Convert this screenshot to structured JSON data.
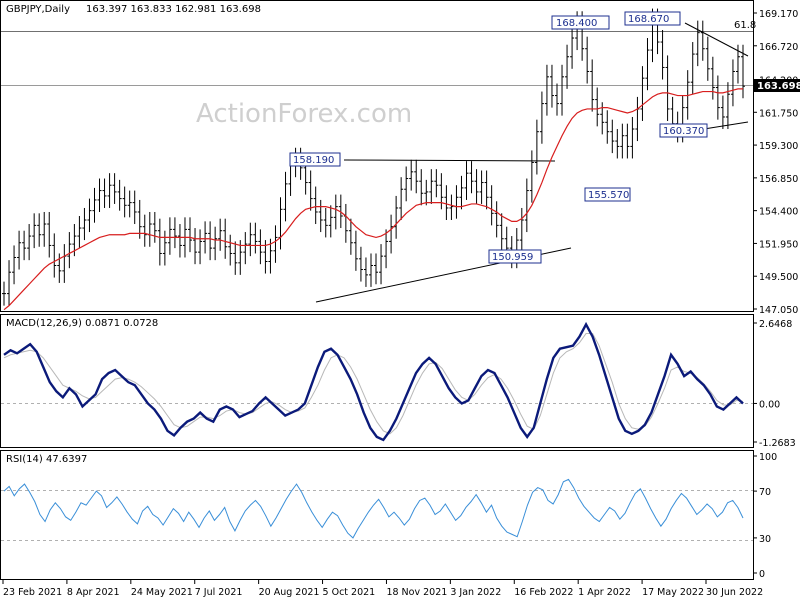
{
  "header": {
    "symbol": "GBPJPY,Daily",
    "ohlc": "163.397 163.833 162.981 163.698"
  },
  "watermark": "ActionForex.com",
  "fib_label": "61.8",
  "current_price_label": "163.698",
  "macd_header": "MACD(12,26,9) 0.0871 0.0728",
  "rsi_header": "RSI(14) 47.6397",
  "colors": {
    "price": "#000000",
    "moving_average": "#d81e1e",
    "macd_line": "#0b1a7a",
    "signal_line": "#b8b8b8",
    "rsi_line": "#3a8fd8",
    "annotation_box_border": "#1c2f8f",
    "price_tag_bg": "#000000"
  },
  "chart_data": [
    {
      "type": "line",
      "panel": "price",
      "x_tick_labels": [
        "23 Feb 2021",
        "8 Apr 2021",
        "24 May 2021",
        "7 Jul 2021",
        "20 Aug 2021",
        "5 Oct 2021",
        "18 Nov 2021",
        "3 Jan 2022",
        "16 Feb 2022",
        "1 Apr 2022",
        "17 May 2022",
        "30 Jun 2022"
      ],
      "y_tick_labels": [
        "169.170",
        "166.720",
        "164.200",
        "161.750",
        "159.300",
        "156.850",
        "154.400",
        "151.950",
        "149.500",
        "147.050"
      ],
      "ylim": [
        147.05,
        169.17
      ],
      "grid": false,
      "series": [
        {
          "values": [
            148.2,
            149.8,
            150.9,
            152.0,
            151.6,
            152.5,
            153.3,
            152.6,
            153.4,
            151.8,
            150.3,
            149.9,
            151.0,
            151.9,
            152.5,
            153.1,
            153.7,
            154.4,
            155.2,
            155.9,
            155.5,
            156.3,
            155.8,
            155.3,
            154.8,
            155.0,
            154.3,
            153.2,
            152.6,
            153.4,
            152.9,
            151.2,
            152.0,
            153.0,
            152.5,
            151.8,
            153.0,
            152.2,
            151.3,
            152.1,
            152.7,
            151.6,
            152.3,
            152.9,
            151.7,
            151.2,
            150.5,
            151.3,
            151.9,
            152.6,
            152.1,
            151.3,
            150.6,
            151.4,
            152.4,
            154.5,
            156.4,
            157.8,
            158.2,
            157.6,
            156.5,
            155.3,
            154.3,
            153.7,
            153.3,
            153.9,
            154.7,
            154.0,
            152.9,
            152.0,
            150.8,
            150.0,
            149.6,
            150.3,
            149.8,
            151.0,
            152.1,
            153.2,
            154.6,
            156.0,
            156.8,
            157.3,
            156.6,
            155.7,
            155.8,
            156.6,
            156.3,
            155.4,
            154.6,
            154.7,
            155.4,
            156.1,
            157.2,
            156.6,
            155.8,
            156.5,
            155.4,
            154.2,
            153.3,
            152.3,
            151.6,
            151.0,
            152.2,
            153.7,
            155.9,
            158.0,
            160.3,
            162.4,
            164.4,
            163.0,
            162.4,
            164.4,
            165.9,
            167.3,
            168.4,
            166.5,
            164.8,
            162.7,
            161.6,
            161.0,
            160.3,
            159.6,
            159.2,
            160.0,
            159.2,
            160.5,
            162.0,
            164.3,
            166.4,
            168.6,
            167.0,
            165.1,
            162.0,
            160.9,
            160.4,
            162.1,
            164.0,
            166.1,
            167.7,
            166.5,
            165.0,
            163.6,
            162.1,
            161.4,
            163.1,
            164.8,
            165.9,
            163.7
          ]
        },
        {
          "name": "",
          "values": [
            147.0,
            147.3,
            147.7,
            148.1,
            148.5,
            148.9,
            149.3,
            149.7,
            150.1,
            150.4,
            150.6,
            150.8,
            151.0,
            151.2,
            151.4,
            151.6,
            151.8,
            152.0,
            152.2,
            152.4,
            152.5,
            152.6,
            152.6,
            152.6,
            152.6,
            152.7,
            152.7,
            152.7,
            152.7,
            152.6,
            152.5,
            152.4,
            152.4,
            152.4,
            152.4,
            152.4,
            152.4,
            152.4,
            152.3,
            152.3,
            152.3,
            152.3,
            152.2,
            152.2,
            152.1,
            152.0,
            151.9,
            151.8,
            151.8,
            151.8,
            151.8,
            151.8,
            151.8,
            151.9,
            152.1,
            152.4,
            152.8,
            153.3,
            153.8,
            154.2,
            154.5,
            154.6,
            154.7,
            154.7,
            154.7,
            154.6,
            154.5,
            154.3,
            154.0,
            153.6,
            153.2,
            152.9,
            152.6,
            152.5,
            152.4,
            152.5,
            152.7,
            153.0,
            153.4,
            153.8,
            154.2,
            154.5,
            154.8,
            154.9,
            155.0,
            155.0,
            155.0,
            155.0,
            154.9,
            154.8,
            154.7,
            154.7,
            154.8,
            154.9,
            154.9,
            154.8,
            154.7,
            154.5,
            154.3,
            154.0,
            153.8,
            153.6,
            153.6,
            153.8,
            154.2,
            154.8,
            155.6,
            156.5,
            157.5,
            158.4,
            159.2,
            160.0,
            160.7,
            161.3,
            161.7,
            161.9,
            162.0,
            162.0,
            162.0,
            162.1,
            162.1,
            162.0,
            161.9,
            161.8,
            161.7,
            161.8,
            162.0,
            162.3,
            162.6,
            162.9,
            163.1,
            163.2,
            163.2,
            163.1,
            163.0,
            163.0,
            163.0,
            163.1,
            163.2,
            163.3,
            163.3,
            163.3,
            163.2,
            163.2,
            163.3,
            163.4,
            163.5,
            163.5
          ]
        }
      ],
      "annotations": [
        "158.190",
        "168.400",
        "168.670",
        "150.959",
        "155.570",
        "160.370"
      ]
    },
    {
      "type": "line",
      "panel": "macd",
      "y_tick_labels": [
        "2.6468",
        "0.00",
        "-1.2683"
      ],
      "ylim": [
        -1.2683,
        2.6468
      ],
      "series": [
        {
          "name": "",
          "values": [
            1.6,
            1.75,
            1.65,
            1.8,
            1.95,
            1.7,
            1.2,
            0.7,
            0.4,
            0.2,
            0.5,
            0.3,
            -0.1,
            0.1,
            0.3,
            0.8,
            1.0,
            1.1,
            0.9,
            0.7,
            0.6,
            0.3,
            0.0,
            -0.2,
            -0.5,
            -0.9,
            -1.05,
            -0.8,
            -0.6,
            -0.5,
            -0.3,
            -0.5,
            -0.6,
            -0.2,
            -0.1,
            -0.2,
            -0.45,
            -0.35,
            -0.25,
            0.0,
            0.2,
            0.0,
            -0.2,
            -0.4,
            -0.3,
            -0.2,
            0.0,
            0.6,
            1.2,
            1.7,
            1.8,
            1.6,
            1.2,
            0.8,
            0.3,
            -0.3,
            -0.8,
            -1.1,
            -1.2,
            -0.9,
            -0.5,
            0.0,
            0.5,
            1.0,
            1.3,
            1.5,
            1.3,
            0.9,
            0.5,
            0.2,
            0.0,
            0.1,
            0.5,
            0.9,
            1.1,
            1.0,
            0.6,
            0.2,
            -0.3,
            -0.8,
            -1.1,
            -0.8,
            0.0,
            0.8,
            1.5,
            1.8,
            1.85,
            1.9,
            2.2,
            2.6,
            2.2,
            1.6,
            0.9,
            0.2,
            -0.5,
            -0.9,
            -1.0,
            -0.9,
            -0.7,
            -0.3,
            0.3,
            0.9,
            1.6,
            1.3,
            0.9,
            1.05,
            0.8,
            0.6,
            0.3,
            -0.1,
            -0.2,
            0.0,
            0.2,
            0.0
          ]
        },
        {
          "name": "",
          "values": [
            1.5,
            1.6,
            1.65,
            1.7,
            1.75,
            1.7,
            1.5,
            1.2,
            0.9,
            0.6,
            0.5,
            0.4,
            0.25,
            0.15,
            0.2,
            0.4,
            0.6,
            0.8,
            0.85,
            0.8,
            0.7,
            0.55,
            0.35,
            0.15,
            -0.1,
            -0.4,
            -0.7,
            -0.8,
            -0.75,
            -0.6,
            -0.45,
            -0.45,
            -0.5,
            -0.4,
            -0.25,
            -0.2,
            -0.3,
            -0.35,
            -0.3,
            -0.15,
            0.0,
            0.05,
            -0.05,
            -0.2,
            -0.3,
            -0.25,
            -0.15,
            0.2,
            0.6,
            1.1,
            1.5,
            1.6,
            1.5,
            1.2,
            0.8,
            0.3,
            -0.2,
            -0.6,
            -0.9,
            -1.0,
            -0.8,
            -0.4,
            0.1,
            0.6,
            1.0,
            1.3,
            1.35,
            1.15,
            0.8,
            0.45,
            0.2,
            0.1,
            0.3,
            0.6,
            0.85,
            0.95,
            0.8,
            0.5,
            0.1,
            -0.35,
            -0.75,
            -0.85,
            -0.4,
            0.3,
            1.0,
            1.5,
            1.7,
            1.8,
            2.0,
            2.3,
            2.3,
            1.9,
            1.3,
            0.7,
            0.0,
            -0.5,
            -0.8,
            -0.85,
            -0.75,
            -0.45,
            0.0,
            0.5,
            1.1,
            1.2,
            1.05,
            1.0,
            0.85,
            0.65,
            0.4,
            0.1,
            -0.05,
            -0.05,
            0.1,
            0.07
          ]
        }
      ]
    },
    {
      "type": "line",
      "panel": "rsi",
      "y_tick_labels": [
        "100",
        "70",
        "30",
        "0"
      ],
      "ylim": [
        0,
        100
      ],
      "reference_lines": [
        70,
        30
      ],
      "series": [
        {
          "name": "",
          "values": [
            70,
            74,
            66,
            72,
            76,
            69,
            61,
            50,
            44,
            54,
            60,
            55,
            48,
            45,
            52,
            60,
            58,
            64,
            70,
            66,
            56,
            60,
            65,
            59,
            52,
            46,
            42,
            53,
            57,
            50,
            47,
            41,
            48,
            55,
            51,
            44,
            52,
            46,
            39,
            47,
            53,
            45,
            50,
            56,
            44,
            36,
            45,
            53,
            58,
            62,
            57,
            49,
            40,
            47,
            55,
            63,
            70,
            76,
            69,
            60,
            52,
            45,
            39,
            46,
            52,
            49,
            41,
            34,
            30,
            38,
            45,
            52,
            58,
            63,
            56,
            48,
            52,
            47,
            41,
            46,
            55,
            62,
            64,
            58,
            50,
            53,
            59,
            52,
            45,
            49,
            56,
            61,
            67,
            60,
            52,
            58,
            47,
            40,
            35,
            33,
            31,
            44,
            58,
            69,
            73,
            71,
            62,
            59,
            67,
            78,
            80,
            73,
            64,
            57,
            52,
            47,
            44,
            50,
            56,
            53,
            46,
            51,
            60,
            68,
            72,
            64,
            55,
            47,
            40,
            46,
            55,
            62,
            68,
            64,
            57,
            50,
            54,
            59,
            55,
            48,
            52,
            60,
            62,
            56,
            47
          ]
        }
      ]
    }
  ]
}
